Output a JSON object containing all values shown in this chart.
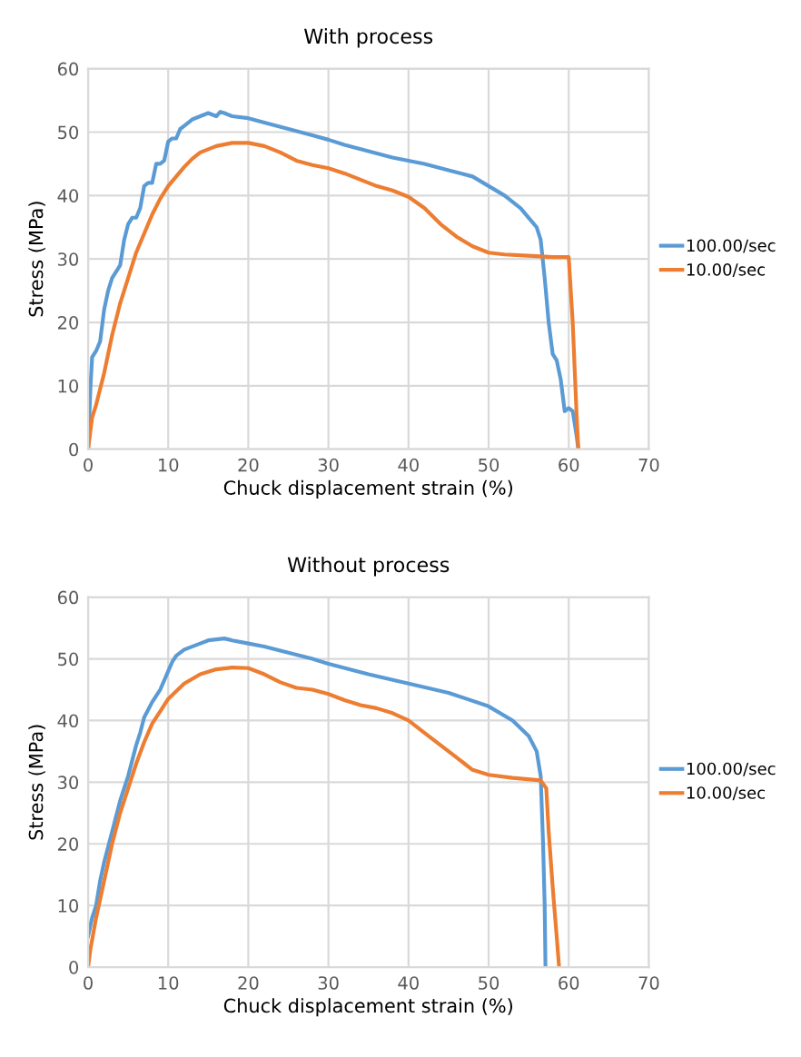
{
  "chart_data": [
    {
      "type": "line",
      "title": "With process",
      "xlabel": "Chuck displacement strain (%)",
      "ylabel": "Stress (MPa)",
      "xlim": [
        0,
        70
      ],
      "ylim": [
        0,
        60
      ],
      "xticks": [
        0,
        10,
        20,
        30,
        40,
        50,
        60,
        70
      ],
      "yticks": [
        0,
        10,
        20,
        30,
        40,
        50,
        60
      ],
      "grid": true,
      "legend": "right",
      "line_style": "solid",
      "series": [
        {
          "name": "100.00/sec",
          "color": "#5b9bd5",
          "x": [
            0,
            0.3,
            0.5,
            1,
            1.5,
            2,
            2.5,
            3,
            3.5,
            4,
            4.5,
            5,
            5.5,
            6,
            6.5,
            7,
            7.5,
            8,
            8.5,
            9,
            9.5,
            10,
            10.5,
            11,
            11.5,
            12,
            13,
            14,
            15,
            16,
            16.5,
            17,
            18,
            20,
            22,
            25,
            28,
            30,
            32,
            35,
            38,
            40,
            42,
            45,
            48,
            50,
            52,
            54,
            55,
            56,
            56.5,
            57,
            57.5,
            58,
            58.5,
            59,
            59.5,
            60,
            60.5,
            61,
            61.2
          ],
          "values": [
            0,
            10,
            14.5,
            15.5,
            17,
            22,
            25,
            27,
            28,
            29,
            33,
            35.5,
            36.5,
            36.5,
            38,
            41.5,
            42,
            42,
            45,
            45,
            45.5,
            48.5,
            49,
            49,
            50.5,
            51,
            52,
            52.5,
            53,
            52.5,
            53.2,
            53,
            52.5,
            52.2,
            51.5,
            50.5,
            49.5,
            48.8,
            48,
            47,
            46,
            45.5,
            45,
            44,
            43,
            41.5,
            40,
            38,
            36.5,
            35,
            33,
            27,
            20,
            15,
            14,
            11,
            6,
            6.5,
            6,
            2,
            0
          ]
        },
        {
          "name": "10.00/sec",
          "color": "#ed7d31",
          "x": [
            0,
            0.5,
            1,
            2,
            3,
            4,
            5,
            6,
            7,
            8,
            9,
            10,
            11,
            12,
            13,
            14,
            16,
            18,
            20,
            22,
            24,
            26,
            28,
            30,
            32,
            34,
            36,
            38,
            40,
            42,
            44,
            46,
            48,
            50,
            52,
            55,
            58,
            60,
            60.5,
            61,
            61.2
          ],
          "values": [
            0,
            5,
            7,
            12,
            18,
            23,
            27,
            31,
            34,
            37,
            39.5,
            41.5,
            43,
            44.5,
            45.8,
            46.8,
            47.8,
            48.3,
            48.3,
            47.8,
            46.8,
            45.5,
            44.8,
            44.3,
            43.5,
            42.5,
            41.5,
            40.8,
            39.8,
            38,
            35.5,
            33.5,
            32,
            31,
            30.7,
            30.5,
            30.3,
            30.3,
            20,
            5,
            0
          ]
        }
      ]
    },
    {
      "type": "line",
      "title": "Without process",
      "xlabel": "Chuck displacement strain (%)",
      "ylabel": "Stress (MPa)",
      "xlim": [
        0,
        70
      ],
      "ylim": [
        0,
        60
      ],
      "xticks": [
        0,
        10,
        20,
        30,
        40,
        50,
        60,
        70
      ],
      "yticks": [
        0,
        10,
        20,
        30,
        40,
        50,
        60
      ],
      "grid": true,
      "legend": "right",
      "line_style": "solid",
      "series": [
        {
          "name": "100.00/sec",
          "color": "#5b9bd5",
          "x": [
            0,
            0.5,
            1,
            1.5,
            2,
            3,
            4,
            5,
            6,
            6.5,
            7,
            8,
            9,
            10,
            10.5,
            11,
            12,
            14,
            15,
            17,
            18,
            20,
            22,
            25,
            28,
            30,
            35,
            40,
            45,
            50,
            53,
            55,
            56,
            56.5,
            56.8,
            57,
            57.1
          ],
          "values": [
            5,
            8,
            10,
            14,
            17,
            22,
            27,
            31,
            36,
            38,
            40.5,
            43,
            45,
            48,
            49.5,
            50.5,
            51.5,
            52.5,
            53,
            53.3,
            53,
            52.5,
            52,
            51,
            50,
            49.2,
            47.5,
            46,
            44.5,
            42.3,
            40,
            37.5,
            35,
            31,
            20,
            10,
            0
          ]
        },
        {
          "name": "10.00/sec",
          "color": "#ed7d31",
          "x": [
            0,
            0.3,
            1,
            2,
            3,
            4,
            5,
            6,
            7,
            8,
            9,
            10,
            12,
            14,
            16,
            18,
            20,
            22,
            24,
            26,
            28,
            30,
            32,
            34,
            36,
            38,
            40,
            42,
            44,
            46,
            48,
            50,
            53,
            56.5,
            57.2,
            57.5,
            58,
            58.5,
            58.8
          ],
          "values": [
            0,
            3,
            8,
            14,
            20,
            25,
            29,
            33,
            36.5,
            39.5,
            41.5,
            43.5,
            46,
            47.5,
            48.3,
            48.6,
            48.5,
            47.5,
            46.2,
            45.3,
            45,
            44.3,
            43.3,
            42.5,
            42,
            41.2,
            40,
            38,
            36,
            34,
            32,
            31.2,
            30.7,
            30.3,
            29,
            22,
            13,
            5,
            0
          ]
        }
      ]
    }
  ]
}
